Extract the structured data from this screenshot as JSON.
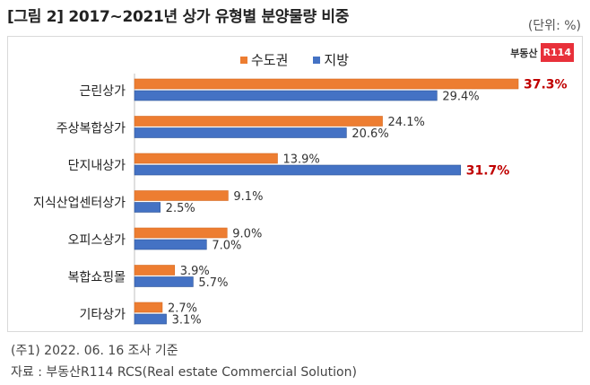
{
  "header": {
    "title": "[그림 2] 2017~2021년 상가 유형별 분양물량 비중",
    "unit": "(단위: %)"
  },
  "logo": {
    "text": "부동산",
    "badge": "R114"
  },
  "footer": {
    "note": "(주1) 2022. 06. 16 조사 기준",
    "source": "자료 : 부동산R114 RCS(Real estate Commercial Solution)"
  },
  "colors": {
    "capital": "#ed7d31",
    "regional": "#4472c4",
    "highlight": "#c00000"
  },
  "chart_data": {
    "type": "bar",
    "orientation": "horizontal",
    "title": "2017~2021년 상가 유형별 분양물량 비중",
    "xlabel": "",
    "ylabel": "",
    "unit": "%",
    "xlim": [
      0,
      40
    ],
    "grid": false,
    "legend_position": "top-center",
    "categories": [
      "근린상가",
      "주상복합상가",
      "단지내상가",
      "지식산업센터상가",
      "오피스상가",
      "복합쇼핑몰",
      "기타상가"
    ],
    "series": [
      {
        "name": "수도권",
        "color": "#ed7d31",
        "values": [
          37.3,
          24.1,
          13.9,
          9.1,
          9.0,
          3.9,
          2.7
        ],
        "labels": [
          "37.3%",
          "24.1%",
          "13.9%",
          "9.1%",
          "9.0%",
          "3.9%",
          "2.7%"
        ]
      },
      {
        "name": "지방",
        "color": "#4472c4",
        "values": [
          29.4,
          20.6,
          31.7,
          2.5,
          7.0,
          5.7,
          3.1
        ],
        "labels": [
          "29.4%",
          "20.6%",
          "31.7%",
          "2.5%",
          "7.0%",
          "5.7%",
          "3.1%"
        ]
      }
    ],
    "highlighted_labels": [
      "37.3%",
      "31.7%"
    ]
  }
}
